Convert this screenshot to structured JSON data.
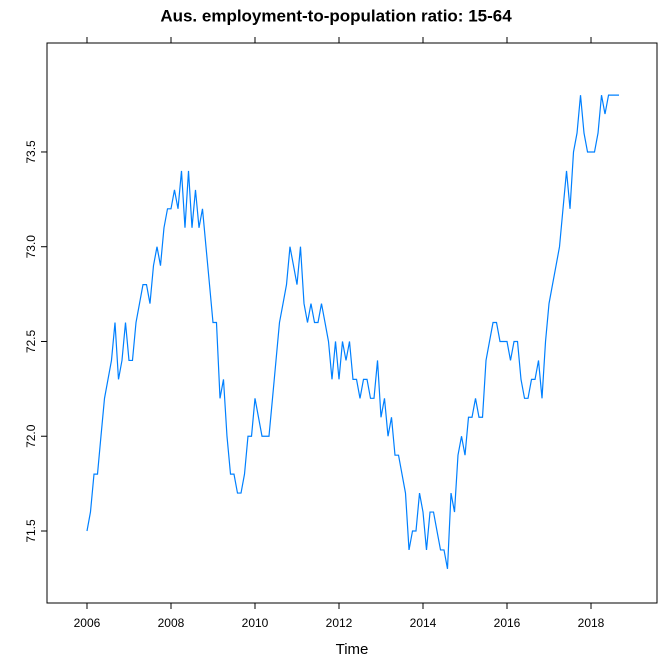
{
  "chart_data": {
    "type": "line",
    "title": "Aus. employment-to-population ratio: 15-64",
    "x_label": "Time",
    "x": [
      2006,
      2006.083,
      2006.167,
      2006.25,
      2006.333,
      2006.417,
      2006.5,
      2006.583,
      2006.667,
      2006.75,
      2006.833,
      2006.917,
      2007,
      2007.083,
      2007.167,
      2007.25,
      2007.333,
      2007.417,
      2007.5,
      2007.583,
      2007.667,
      2007.75,
      2007.833,
      2007.917,
      2008,
      2008.083,
      2008.167,
      2008.25,
      2008.333,
      2008.417,
      2008.5,
      2008.583,
      2008.667,
      2008.75,
      2008.833,
      2008.917,
      2009,
      2009.083,
      2009.167,
      2009.25,
      2009.333,
      2009.417,
      2009.5,
      2009.583,
      2009.667,
      2009.75,
      2009.833,
      2009.917,
      2010,
      2010.083,
      2010.167,
      2010.25,
      2010.333,
      2010.417,
      2010.5,
      2010.583,
      2010.667,
      2010.75,
      2010.833,
      2010.917,
      2011,
      2011.083,
      2011.167,
      2011.25,
      2011.333,
      2011.417,
      2011.5,
      2011.583,
      2011.667,
      2011.75,
      2011.833,
      2011.917,
      2012,
      2012.083,
      2012.167,
      2012.25,
      2012.333,
      2012.417,
      2012.5,
      2012.583,
      2012.667,
      2012.75,
      2012.833,
      2012.917,
      2013,
      2013.083,
      2013.167,
      2013.25,
      2013.333,
      2013.417,
      2013.5,
      2013.583,
      2013.667,
      2013.75,
      2013.833,
      2013.917,
      2014,
      2014.083,
      2014.167,
      2014.25,
      2014.333,
      2014.417,
      2014.5,
      2014.583,
      2014.667,
      2014.75,
      2014.833,
      2014.917,
      2015,
      2015.083,
      2015.167,
      2015.25,
      2015.333,
      2015.417,
      2015.5,
      2015.583,
      2015.667,
      2015.75,
      2015.833,
      2015.917,
      2016,
      2016.083,
      2016.167,
      2016.25,
      2016.333,
      2016.417,
      2016.5,
      2016.583,
      2016.667,
      2016.75,
      2016.833,
      2016.917,
      2017,
      2017.083,
      2017.167,
      2017.25,
      2017.333,
      2017.417,
      2017.5,
      2017.583,
      2017.667,
      2017.75,
      2017.833,
      2017.917,
      2018,
      2018.083,
      2018.167,
      2018.25,
      2018.333,
      2018.417,
      2018.5,
      2018.583,
      2018.667
    ],
    "series": [
      {
        "name": "employment-to-population ratio",
        "color": "#0080ff",
        "values": [
          71.5,
          71.6,
          71.8,
          71.8,
          72.0,
          72.2,
          72.3,
          72.4,
          72.6,
          72.3,
          72.4,
          72.6,
          72.4,
          72.4,
          72.6,
          72.7,
          72.8,
          72.8,
          72.7,
          72.9,
          73.0,
          72.9,
          73.1,
          73.2,
          73.2,
          73.3,
          73.2,
          73.4,
          73.1,
          73.4,
          73.1,
          73.3,
          73.1,
          73.2,
          73.0,
          72.8,
          72.6,
          72.6,
          72.2,
          72.3,
          72.0,
          71.8,
          71.8,
          71.7,
          71.7,
          71.8,
          72.0,
          72.0,
          72.2,
          72.1,
          72.0,
          72.0,
          72.0,
          72.2,
          72.4,
          72.6,
          72.7,
          72.8,
          73.0,
          72.9,
          72.8,
          73.0,
          72.7,
          72.6,
          72.7,
          72.6,
          72.6,
          72.7,
          72.6,
          72.5,
          72.3,
          72.5,
          72.3,
          72.5,
          72.4,
          72.5,
          72.3,
          72.3,
          72.2,
          72.3,
          72.3,
          72.2,
          72.2,
          72.4,
          72.1,
          72.2,
          72.0,
          72.1,
          71.9,
          71.9,
          71.8,
          71.7,
          71.4,
          71.5,
          71.5,
          71.7,
          71.6,
          71.4,
          71.6,
          71.6,
          71.5,
          71.4,
          71.4,
          71.3,
          71.7,
          71.6,
          71.9,
          72.0,
          71.9,
          72.1,
          72.1,
          72.2,
          72.1,
          72.1,
          72.4,
          72.5,
          72.6,
          72.6,
          72.5,
          72.5,
          72.5,
          72.4,
          72.5,
          72.5,
          72.3,
          72.2,
          72.2,
          72.3,
          72.3,
          72.4,
          72.2,
          72.5,
          72.7,
          72.8,
          72.9,
          73.0,
          73.2,
          73.4,
          73.2,
          73.5,
          73.6,
          73.8,
          73.6,
          73.5,
          73.5,
          73.5,
          73.6,
          73.8,
          73.7,
          73.8,
          73.8,
          73.8,
          73.8
        ]
      }
    ],
    "xlim": [
      2005.048,
      2019.571
    ],
    "xticks": [
      2006,
      2008,
      2010,
      2012,
      2014,
      2016,
      2018
    ],
    "ylim": [
      71.12,
      74.075
    ],
    "yticks": [
      {
        "value": 71.5,
        "label": "71.5"
      },
      {
        "value": 72,
        "label": "72.0"
      },
      {
        "value": 72.5,
        "label": "72.5"
      },
      {
        "value": 73,
        "label": "73.0"
      },
      {
        "value": 73.5,
        "label": "73.5"
      }
    ],
    "grid": false
  }
}
